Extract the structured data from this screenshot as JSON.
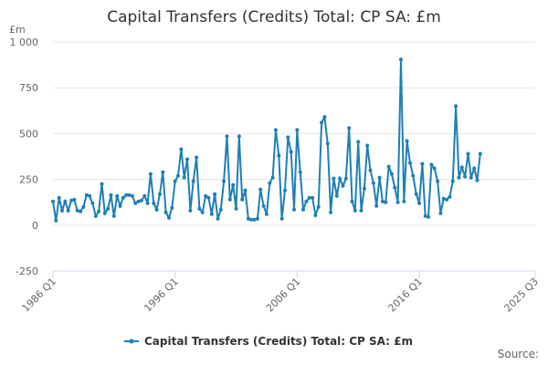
{
  "chart_data": {
    "type": "line",
    "title": "Capital Transfers (Credits) Total: CP SA: £m",
    "unit_label": "£m",
    "source_label": "Source:",
    "ylim": [
      -250,
      1000
    ],
    "y_ticks": [
      {
        "value": 1000,
        "label": "1 000"
      },
      {
        "value": 750,
        "label": "750"
      },
      {
        "value": 500,
        "label": "500"
      },
      {
        "value": 250,
        "label": "250"
      },
      {
        "value": 0,
        "label": "0"
      },
      {
        "value": -250,
        "label": "-250"
      }
    ],
    "x_range": [
      "1986 Q1",
      "2025 Q3"
    ],
    "x_ticks": [
      "1986 Q1",
      "1996 Q1",
      "2006 Q1",
      "2016 Q1",
      "2025 Q3"
    ],
    "grid": true,
    "legend_position": "bottom",
    "color": "#1f7fb5",
    "series": [
      {
        "name": "Capital Transfers (Credits) Total: CP SA: £m",
        "start": "1986 Q1",
        "values": [
          130,
          25,
          150,
          80,
          130,
          80,
          135,
          140,
          80,
          75,
          100,
          165,
          160,
          120,
          50,
          75,
          225,
          65,
          90,
          165,
          50,
          160,
          105,
          150,
          165,
          165,
          160,
          120,
          130,
          135,
          160,
          120,
          280,
          120,
          85,
          170,
          290,
          70,
          40,
          95,
          240,
          270,
          415,
          260,
          360,
          80,
          240,
          370,
          90,
          70,
          160,
          150,
          60,
          170,
          35,
          85,
          240,
          485,
          140,
          220,
          90,
          485,
          140,
          190,
          35,
          30,
          30,
          35,
          195,
          105,
          60,
          230,
          260,
          520,
          380,
          35,
          190,
          480,
          400,
          85,
          520,
          290,
          85,
          130,
          150,
          150,
          55,
          100,
          560,
          590,
          445,
          70,
          255,
          160,
          255,
          215,
          255,
          530,
          130,
          80,
          455,
          80,
          200,
          435,
          300,
          230,
          105,
          260,
          130,
          125,
          320,
          280,
          205,
          125,
          905,
          130,
          460,
          340,
          270,
          170,
          120,
          335,
          50,
          45,
          330,
          310,
          240,
          65,
          145,
          140,
          155,
          240,
          650,
          260,
          315,
          265,
          390,
          260,
          310,
          245,
          390
        ]
      }
    ]
  }
}
